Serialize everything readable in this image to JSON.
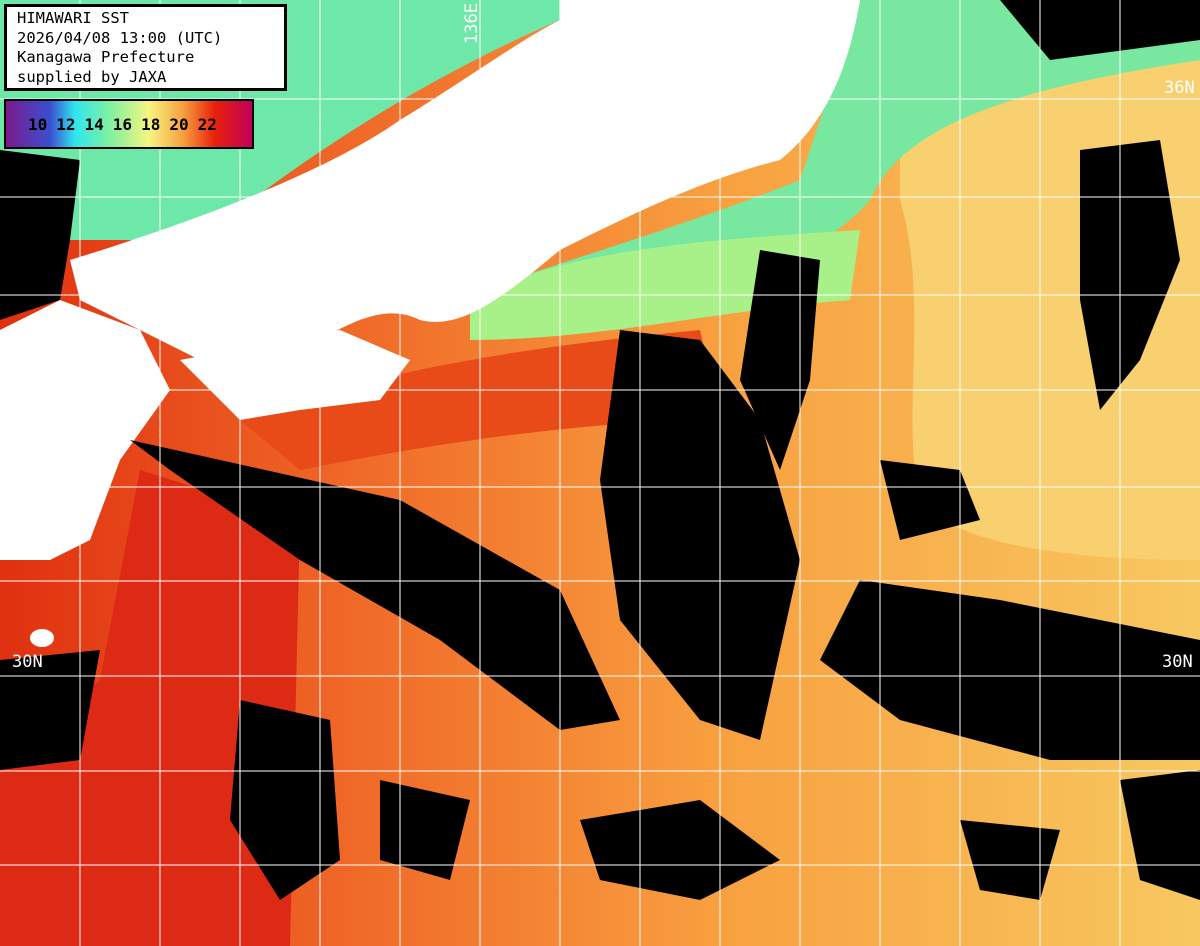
{
  "info": {
    "title": "HIMAWARI SST",
    "datetime": "2026/04/08 13:00 (UTC)",
    "region": "Kanagawa Prefecture",
    "credit": "supplied by JAXA"
  },
  "legend": {
    "unit_ticks": [
      "10",
      "12",
      "14",
      "16",
      "18",
      "20",
      "22"
    ],
    "colors": [
      "#7a1a8c",
      "#3a4fd0",
      "#2fe6f0",
      "#7ef0a0",
      "#f5f580",
      "#f7a040",
      "#e8200a",
      "#c0005a"
    ]
  },
  "grid_labels": {
    "lon_136": "136E",
    "lat_36": "36N",
    "lat_30_left": "30N",
    "lat_30_right": "30N"
  },
  "colors": {
    "land": "#ffffff",
    "cloud": "#000000",
    "warm": "#f08030",
    "kuroshio": "#e03010",
    "cool": "#70eaa0",
    "grid": "#ffffff"
  }
}
